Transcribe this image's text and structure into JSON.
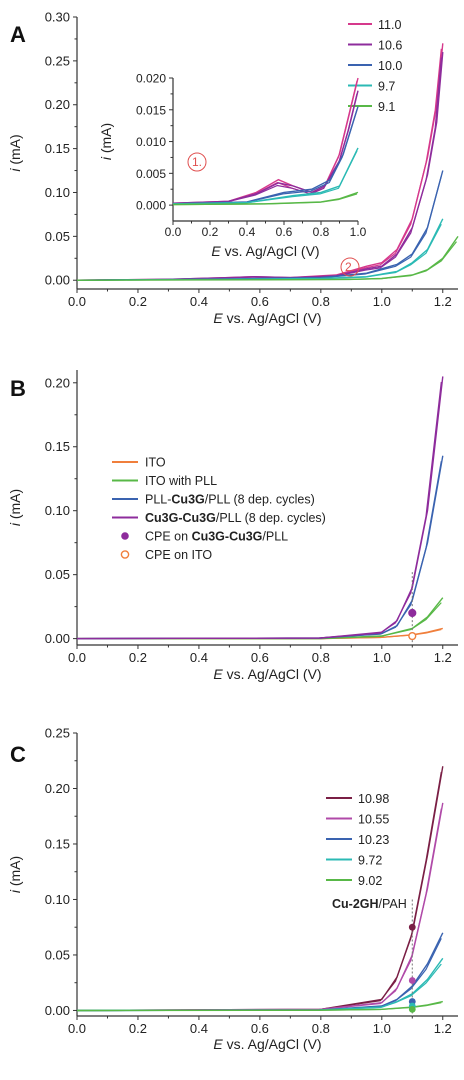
{
  "chart_data": [
    {
      "type": "line",
      "panel": "A",
      "xlabel_italic": "E",
      "xlabel_rest": " vs. Ag/AgCl (V)",
      "ylabel_italic": "i",
      "ylabel_rest": " (mA)",
      "xlim": [
        0.0,
        1.25
      ],
      "ylim": [
        -0.01,
        0.3
      ],
      "xticks": [
        "0.0",
        "0.2",
        "0.4",
        "0.6",
        "0.8",
        "1.0",
        "1.2"
      ],
      "yticks": [
        "0.00",
        "0.05",
        "0.10",
        "0.15",
        "0.20",
        "0.25",
        "0.30"
      ],
      "legend": [
        "11.0",
        "10.6",
        "10.0",
        "9.7",
        "9.1"
      ],
      "series": [
        {
          "name": "11.0",
          "color": "#d6398c",
          "x": [
            0.0,
            0.3,
            0.5,
            0.58,
            0.7,
            0.85,
            0.95,
            1.0,
            1.05,
            1.1,
            1.15,
            1.18,
            1.2
          ],
          "y": [
            0.0,
            0.001,
            0.003,
            0.004,
            0.003,
            0.006,
            0.016,
            0.02,
            0.035,
            0.07,
            0.14,
            0.2,
            0.27
          ]
        },
        {
          "name": "10.6",
          "color": "#8e2c9c",
          "x": [
            0.0,
            0.3,
            0.5,
            0.58,
            0.7,
            0.85,
            0.95,
            1.0,
            1.05,
            1.1,
            1.15,
            1.18,
            1.2
          ],
          "y": [
            0.0,
            0.001,
            0.003,
            0.004,
            0.003,
            0.005,
            0.013,
            0.016,
            0.03,
            0.06,
            0.12,
            0.18,
            0.26
          ]
        },
        {
          "name": "10.0",
          "color": "#3a63b0",
          "x": [
            0.0,
            0.4,
            0.6,
            0.8,
            0.95,
            1.05,
            1.1,
            1.15,
            1.2
          ],
          "y": [
            0.0,
            0.001,
            0.002,
            0.003,
            0.008,
            0.018,
            0.03,
            0.06,
            0.125
          ]
        },
        {
          "name": "9.7",
          "color": "#2bbab4",
          "x": [
            0.0,
            0.5,
            0.8,
            0.95,
            1.05,
            1.1,
            1.15,
            1.2
          ],
          "y": [
            0.0,
            0.001,
            0.002,
            0.004,
            0.01,
            0.02,
            0.035,
            0.07
          ]
        },
        {
          "name": "9.1",
          "color": "#58b847",
          "x": [
            0.0,
            0.6,
            0.9,
            1.0,
            1.1,
            1.15,
            1.2,
            1.25
          ],
          "y": [
            0.0,
            0.0005,
            0.001,
            0.002,
            0.006,
            0.012,
            0.025,
            0.05
          ]
        }
      ],
      "annotations": [
        "1.",
        "2."
      ],
      "inset": {
        "xlim": [
          0.0,
          1.0
        ],
        "ylim": [
          -0.0025,
          0.02
        ],
        "xticks": [
          "0.0",
          "0.2",
          "0.4",
          "0.6",
          "0.8",
          "1.0"
        ],
        "yticks": [
          "0.000",
          "0.005",
          "0.010",
          "0.015",
          "0.020"
        ],
        "series": [
          {
            "name": "11.0",
            "color": "#d6398c",
            "x": [
              0.0,
              0.3,
              0.45,
              0.57,
              0.65,
              0.75,
              0.82,
              0.9,
              0.95,
              1.0
            ],
            "y": [
              0.0003,
              0.0006,
              0.002,
              0.004,
              0.003,
              0.002,
              0.003,
              0.008,
              0.014,
              0.02
            ]
          },
          {
            "name": "10.6",
            "color": "#8e2c9c",
            "x": [
              0.0,
              0.3,
              0.45,
              0.57,
              0.65,
              0.75,
              0.82,
              0.9,
              0.95,
              1.0
            ],
            "y": [
              0.0003,
              0.0006,
              0.0018,
              0.0035,
              0.003,
              0.002,
              0.003,
              0.007,
              0.012,
              0.018
            ]
          },
          {
            "name": "10.0",
            "color": "#3a63b0",
            "x": [
              0.0,
              0.4,
              0.6,
              0.75,
              0.85,
              0.92,
              1.0
            ],
            "y": [
              0.0002,
              0.0005,
              0.002,
              0.0025,
              0.004,
              0.008,
              0.0155
            ]
          },
          {
            "name": "9.7",
            "color": "#2bbab4",
            "x": [
              0.0,
              0.4,
              0.65,
              0.8,
              0.9,
              1.0
            ],
            "y": [
              0.0002,
              0.0004,
              0.0015,
              0.002,
              0.003,
              0.009
            ]
          },
          {
            "name": "9.1",
            "color": "#58b847",
            "x": [
              0.0,
              0.5,
              0.8,
              0.9,
              1.0
            ],
            "y": [
              0.0001,
              0.0002,
              0.0005,
              0.001,
              0.002
            ]
          }
        ]
      }
    },
    {
      "type": "line",
      "panel": "B",
      "xlabel_italic": "E",
      "xlabel_rest": " vs. Ag/AgCl (V)",
      "ylabel_italic": "i",
      "ylabel_rest": " (mA)",
      "xlim": [
        0.0,
        1.25
      ],
      "ylim": [
        -0.005,
        0.21
      ],
      "xticks": [
        "0.0",
        "0.2",
        "0.4",
        "0.6",
        "0.8",
        "1.0",
        "1.2"
      ],
      "yticks": [
        "0.00",
        "0.05",
        "0.10",
        "0.15",
        "0.20"
      ],
      "legend": [
        {
          "type": "line",
          "color": "#f07f3c",
          "parts": [
            {
              "t": "ITO",
              "b": false
            }
          ]
        },
        {
          "type": "line",
          "color": "#58b847",
          "parts": [
            {
              "t": "ITO with PLL",
              "b": false
            }
          ]
        },
        {
          "type": "line",
          "color": "#3a63b0",
          "parts": [
            {
              "t": "PLL-",
              "b": false
            },
            {
              "t": "Cu3G",
              "b": true
            },
            {
              "t": "/PLL (8 dep. cycles)",
              "b": false
            }
          ]
        },
        {
          "type": "line",
          "color": "#8e2c9c",
          "parts": [
            {
              "t": "Cu3G-Cu3G",
              "b": true
            },
            {
              "t": "/PLL (8 dep. cycles)",
              "b": false
            }
          ]
        },
        {
          "type": "dot",
          "color": "#8e2c9c",
          "parts": [
            {
              "t": "CPE on ",
              "b": false
            },
            {
              "t": "Cu3G-Cu3G",
              "b": true
            },
            {
              "t": "/PLL",
              "b": false
            }
          ]
        },
        {
          "type": "circle",
          "color": "#f07f3c",
          "parts": [
            {
              "t": "CPE on ITO",
              "b": false
            }
          ]
        }
      ],
      "series": [
        {
          "name": "ITO",
          "color": "#f07f3c",
          "x": [
            0.0,
            0.8,
            1.0,
            1.1,
            1.15,
            1.2
          ],
          "y": [
            0.0,
            0.0,
            0.001,
            0.003,
            0.005,
            0.008
          ]
        },
        {
          "name": "ITO with PLL",
          "color": "#58b847",
          "x": [
            0.0,
            0.8,
            1.0,
            1.1,
            1.15,
            1.2
          ],
          "y": [
            0.0,
            0.0,
            0.002,
            0.008,
            0.017,
            0.032
          ]
        },
        {
          "name": "PLL-Cu3G/PLL",
          "color": "#3a63b0",
          "x": [
            0.0,
            0.8,
            1.0,
            1.05,
            1.1,
            1.15,
            1.2
          ],
          "y": [
            0.0,
            0.0005,
            0.004,
            0.01,
            0.03,
            0.075,
            0.143
          ]
        },
        {
          "name": "Cu3G-Cu3G/PLL",
          "color": "#8e2c9c",
          "x": [
            0.0,
            0.8,
            1.0,
            1.05,
            1.1,
            1.15,
            1.2
          ],
          "y": [
            0.0,
            0.0005,
            0.005,
            0.014,
            0.04,
            0.1,
            0.205
          ]
        }
      ],
      "points": [
        {
          "name": "CPE on Cu3G-Cu3G/PLL",
          "x": 1.1,
          "y": 0.02
        },
        {
          "name": "CPE on ITO",
          "x": 1.1,
          "y": 0.002
        }
      ]
    },
    {
      "type": "line",
      "panel": "C",
      "xlabel_italic": "E",
      "xlabel_rest": " vs. Ag/AgCl (V)",
      "ylabel_italic": "i",
      "ylabel_rest": " (mA)",
      "xlim": [
        0.0,
        1.25
      ],
      "ylim": [
        -0.005,
        0.25
      ],
      "xticks": [
        "0.0",
        "0.2",
        "0.4",
        "0.6",
        "0.8",
        "1.0",
        "1.2"
      ],
      "yticks": [
        "0.00",
        "0.05",
        "0.10",
        "0.15",
        "0.20",
        "0.25"
      ],
      "legend": [
        "10.98",
        "10.55",
        "10.23",
        "9.72",
        "9.02"
      ],
      "label_parts": [
        {
          "t": "Cu-2GH",
          "b": true
        },
        {
          "t": "/PAH",
          "b": false
        }
      ],
      "series": [
        {
          "name": "10.98",
          "color": "#7a1f45",
          "x": [
            0.0,
            0.8,
            1.0,
            1.05,
            1.1,
            1.15,
            1.2
          ],
          "y": [
            0.0,
            0.001,
            0.01,
            0.03,
            0.07,
            0.14,
            0.22
          ]
        },
        {
          "name": "10.55",
          "color": "#b04aa8",
          "x": [
            0.0,
            0.8,
            1.0,
            1.05,
            1.1,
            1.15,
            1.2
          ],
          "y": [
            0.0,
            0.001,
            0.007,
            0.02,
            0.05,
            0.11,
            0.187
          ]
        },
        {
          "name": "10.23",
          "color": "#3a63b0",
          "x": [
            0.0,
            0.8,
            1.0,
            1.05,
            1.1,
            1.15,
            1.2
          ],
          "y": [
            0.0,
            0.0005,
            0.004,
            0.01,
            0.022,
            0.042,
            0.07
          ]
        },
        {
          "name": "9.72",
          "color": "#2bbab4",
          "x": [
            0.0,
            0.8,
            1.0,
            1.05,
            1.1,
            1.15,
            1.2
          ],
          "y": [
            0.0,
            0.0005,
            0.003,
            0.008,
            0.015,
            0.028,
            0.047
          ]
        },
        {
          "name": "9.02",
          "color": "#58b847",
          "x": [
            0.0,
            0.8,
            1.0,
            1.1,
            1.15,
            1.2
          ],
          "y": [
            0.0,
            0.0002,
            0.001,
            0.003,
            0.005,
            0.008
          ]
        }
      ],
      "points": [
        {
          "x": 1.1,
          "y": 0.075,
          "color": "#7a1f45"
        },
        {
          "x": 1.1,
          "y": 0.027,
          "color": "#b04aa8"
        },
        {
          "x": 1.1,
          "y": 0.008,
          "color": "#3a63b0"
        },
        {
          "x": 1.1,
          "y": 0.004,
          "color": "#2bbab4"
        },
        {
          "x": 1.1,
          "y": 0.001,
          "color": "#58b847"
        }
      ]
    }
  ]
}
